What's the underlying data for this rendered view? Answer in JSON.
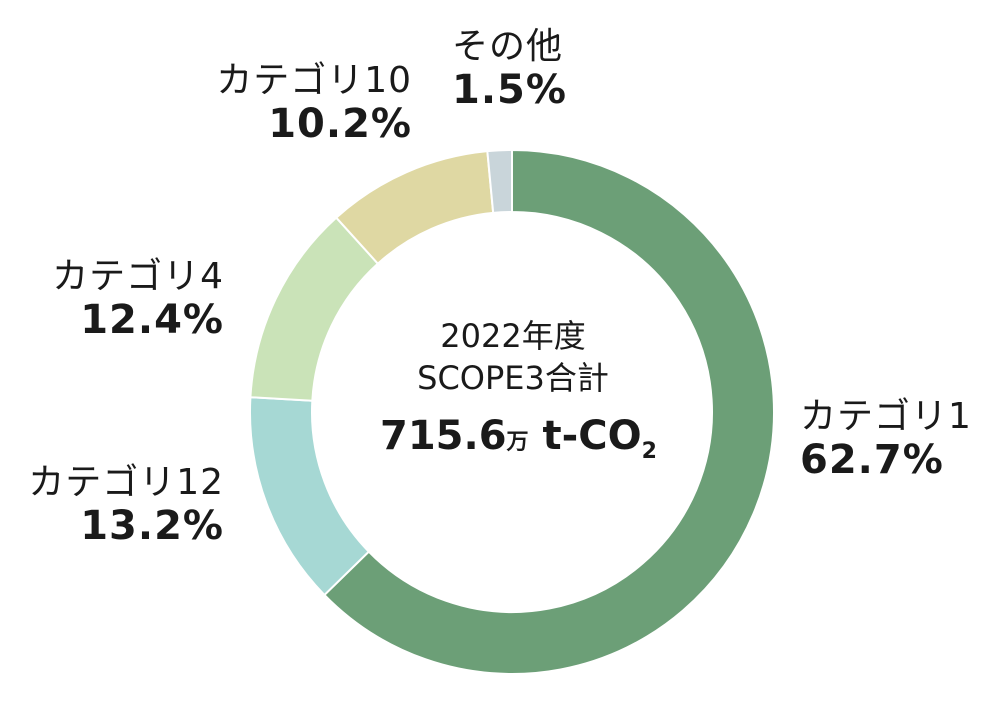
{
  "chart_data": {
    "type": "pie",
    "donut": true,
    "title_lines": [
      "2022年度",
      "SCOPE3合計"
    ],
    "total": {
      "value": "715.6",
      "unit_small": "万",
      "unit": "t-CO",
      "subscript": "2"
    },
    "slices": [
      {
        "name": "カテゴリ1",
        "value": 62.7,
        "label": "62.7%",
        "color": "#6c9f77"
      },
      {
        "name": "カテゴリ12",
        "value": 13.2,
        "label": "13.2%",
        "color": "#a6d8d4"
      },
      {
        "name": "カテゴリ4",
        "value": 12.4,
        "label": "12.4%",
        "color": "#cae3b8"
      },
      {
        "name": "カテゴリ10",
        "value": 10.2,
        "label": "10.2%",
        "color": "#dfd8a3"
      },
      {
        "name": "その他",
        "value": 1.5,
        "label": "1.5%",
        "color": "#c9d5da"
      }
    ]
  }
}
